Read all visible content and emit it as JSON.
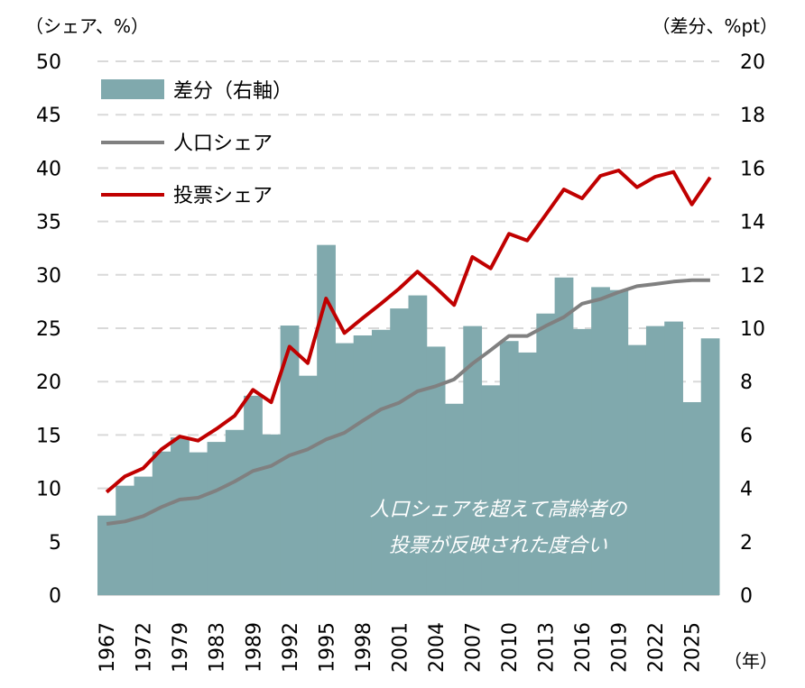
{
  "chart_data": {
    "type": "bar+line",
    "left_axis_label": "（シェア、%）",
    "right_axis_label": "（差分、%pt）",
    "x_axis_label": "（年）",
    "left_ylim": [
      0,
      50
    ],
    "left_ticks": [
      0,
      5,
      10,
      15,
      20,
      25,
      30,
      35,
      40,
      45,
      50
    ],
    "right_ylim": [
      0,
      20
    ],
    "right_ticks": [
      0,
      2,
      4,
      6,
      8,
      10,
      12,
      14,
      16,
      18,
      20
    ],
    "grid": "horizontal dashed",
    "legend_placement": "top-left",
    "categories": [
      "1967",
      "",
      "1972",
      "",
      "1979",
      "",
      "1983",
      "",
      "1989",
      "",
      "1992",
      "",
      "1995",
      "",
      "1998",
      "",
      "2001",
      "",
      "2004",
      "",
      "2007",
      "",
      "2010",
      "",
      "2013",
      "",
      "2016",
      "",
      "2019",
      "",
      "2022",
      "",
      "2025",
      ""
    ],
    "series": [
      {
        "name": "差分（右軸）",
        "type": "bar",
        "axis": "right",
        "color": "#80a9ad",
        "values": [
          2.98,
          4.1,
          4.44,
          5.38,
          5.91,
          5.35,
          5.74,
          6.19,
          7.47,
          6.02,
          10.1,
          8.22,
          13.12,
          9.44,
          9.73,
          9.94,
          10.74,
          11.23,
          9.31,
          7.17,
          10.08,
          7.86,
          9.52,
          9.09,
          10.55,
          11.9,
          9.97,
          11.54,
          11.43,
          9.37,
          10.08,
          10.25,
          7.23,
          9.62
        ]
      },
      {
        "name": "人口シェア",
        "type": "line",
        "axis": "left",
        "color": "#808080",
        "values": [
          6.67,
          6.9,
          7.4,
          8.25,
          8.95,
          9.12,
          9.8,
          10.64,
          11.63,
          12.1,
          13.09,
          13.66,
          14.58,
          15.2,
          16.33,
          17.4,
          18.02,
          19.1,
          19.57,
          20.21,
          21.68,
          22.95,
          24.27,
          24.27,
          25.2,
          26.04,
          27.3,
          27.73,
          28.38,
          28.94,
          29.14,
          29.37,
          29.5,
          29.5
        ]
      },
      {
        "name": "投票シェア",
        "type": "line",
        "axis": "left",
        "color": "#c00000",
        "values": [
          9.65,
          11.12,
          11.88,
          13.66,
          14.86,
          14.47,
          15.57,
          16.8,
          19.23,
          18.07,
          23.28,
          21.73,
          27.79,
          24.55,
          25.95,
          27.3,
          28.72,
          30.3,
          28.8,
          27.17,
          31.67,
          30.6,
          33.84,
          33.22,
          35.6,
          38.0,
          37.16,
          39.27,
          39.78,
          38.2,
          39.19,
          39.64,
          36.6,
          39.13
        ]
      }
    ],
    "annotation": [
      "人口シェアを超えて高齢者の",
      "投票が反映された度合い"
    ]
  }
}
